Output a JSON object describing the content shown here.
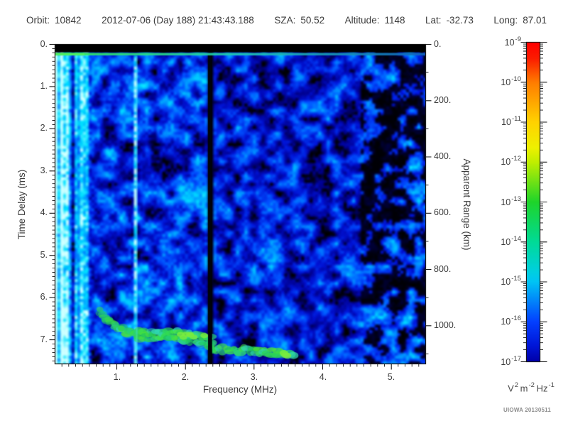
{
  "header": {
    "fields": [
      {
        "label": "Orbit:",
        "value": "10842"
      },
      {
        "label": "",
        "value": "2012-07-06 (Day 188) 21:43:43.188"
      },
      {
        "label": "SZA:",
        "value": "50.52"
      },
      {
        "label": "Altitude:",
        "value": "1148"
      },
      {
        "label": "Lat:",
        "value": "-32.73"
      },
      {
        "label": "Long:",
        "value": "87.01"
      }
    ]
  },
  "chart_data": {
    "type": "heatmap",
    "description": "Radar sounder ionogram: received spectral density vs frequency and time delay",
    "x_axis": {
      "label": "Frequency (MHz)",
      "range": [
        0.1,
        5.5
      ],
      "major_ticks": [
        1,
        2,
        3,
        4,
        5
      ],
      "tick_labels": [
        "1.",
        "2.",
        "3.",
        "4.",
        "5."
      ],
      "minor_step": 0.1
    },
    "y_axis_left": {
      "label": "Time Delay (ms)",
      "range": [
        0,
        7.57
      ],
      "major_ticks": [
        0,
        1,
        2,
        3,
        4,
        5,
        6,
        7
      ],
      "tick_labels": [
        "0.",
        "1.",
        "2.",
        "3.",
        "4.",
        "5.",
        "6.",
        "7."
      ],
      "minor_step": 0.1
    },
    "y_axis_right": {
      "label": "Apparent Range (km)",
      "range": [
        0,
        1135
      ],
      "km_per_ms": 150,
      "major_ticks": [
        0,
        200,
        400,
        600,
        800,
        1000
      ],
      "tick_labels": [
        "0.",
        "200.",
        "400.",
        "600.",
        "800.",
        "1000."
      ],
      "minor_step": 100
    },
    "colorbar": {
      "scale": "log",
      "exponent_ticks": [
        -9,
        -10,
        -11,
        -12,
        -13,
        -14,
        -15,
        -16,
        -17
      ],
      "units_parts": [
        [
          "V",
          "2"
        ],
        [
          "m",
          "-2"
        ],
        [
          "Hz",
          "-1"
        ]
      ],
      "gradient": [
        {
          "p": 0.0,
          "c": "#ff0000"
        },
        {
          "p": 0.05,
          "c": "#fb1c00"
        },
        {
          "p": 0.125,
          "c": "#ff7c00"
        },
        {
          "p": 0.25,
          "c": "#ffd200"
        },
        {
          "p": 0.33,
          "c": "#eef000"
        },
        {
          "p": 0.375,
          "c": "#c0ee00"
        },
        {
          "p": 0.5,
          "c": "#1ed42a"
        },
        {
          "p": 0.625,
          "c": "#00da96"
        },
        {
          "p": 0.72,
          "c": "#00cfe0"
        },
        {
          "p": 0.75,
          "c": "#00c4f4"
        },
        {
          "p": 0.875,
          "c": "#0340ff"
        },
        {
          "p": 0.95,
          "c": "#0016d8"
        },
        {
          "p": 1.0,
          "c": "#0000a8"
        }
      ]
    },
    "features": {
      "top_saturation_band": {
        "t_ms": [
          0,
          0.185
        ]
      },
      "transmit_marker": {
        "t_ms": 0.21,
        "colors": [
          "#35e853",
          "#2bde7a",
          "#1fc8b4",
          "#1064be"
        ]
      },
      "electron_plasma_lines": [
        {
          "f_mhz": 0.14,
          "strength": 0.82
        },
        {
          "f_mhz": 0.26,
          "strength": 0.78
        },
        {
          "f_mhz": 0.46,
          "strength": 0.72
        },
        {
          "f_mhz": 1.29,
          "strength": 0.97
        }
      ],
      "attenuation_gap": {
        "f_mhz": [
          2.33,
          2.39
        ]
      },
      "ionospheric_echo_trace": {
        "points_mhz_ms": [
          [
            0.75,
            6.33
          ],
          [
            0.9,
            6.55
          ],
          [
            1.0,
            6.7
          ],
          [
            1.2,
            6.82
          ],
          [
            1.37,
            6.87
          ],
          [
            1.6,
            6.88
          ],
          [
            1.78,
            6.88
          ],
          [
            2.0,
            6.93
          ],
          [
            2.15,
            6.97
          ],
          [
            2.33,
            7.0
          ],
          [
            2.4,
            7.2
          ],
          [
            2.6,
            7.22
          ],
          [
            2.92,
            7.25
          ],
          [
            3.2,
            7.28
          ],
          [
            3.43,
            7.3
          ],
          [
            3.6,
            7.34
          ]
        ],
        "blob_colors": [
          "#1fc85e",
          "#2ed855",
          "#3ce04a",
          "#27d07a",
          "#4ae23c",
          "#30d8b0"
        ],
        "bright_color": "#78ec3e",
        "dense_band_mhz": [
          1.3,
          2.35
        ]
      }
    },
    "noise": {
      "seed": 1234,
      "palette": [
        {
          "p": 0.0,
          "c": "#000006"
        },
        {
          "p": 0.14,
          "c": "#00008c"
        },
        {
          "p": 0.32,
          "c": "#0012d4"
        },
        {
          "p": 0.5,
          "c": "#0051ff"
        },
        {
          "p": 0.66,
          "c": "#009cff"
        },
        {
          "p": 0.82,
          "c": "#00e0ff"
        },
        {
          "p": 1.0,
          "c": "#c8ffff"
        }
      ],
      "regions": [
        {
          "f_max": 0.62,
          "style": "stripes",
          "base": 0.18,
          "column_weight": 0.9,
          "jitter": 0.34
        },
        {
          "f_max": 2.35,
          "style": "blobs",
          "base": 0.4,
          "blob_weight": 0.85,
          "jitter": 0.22
        },
        {
          "f_max": 4.55,
          "style": "blobs",
          "base": 0.34,
          "blob_weight": 0.8,
          "jitter": 0.2
        },
        {
          "f_max": 5.51,
          "style": "sparse",
          "base": 0.3,
          "blob_weight": 0.95,
          "jitter": 0.25,
          "cutoff": 0.3
        }
      ]
    }
  },
  "footer": {
    "credit": "UIOWA 20130511"
  }
}
